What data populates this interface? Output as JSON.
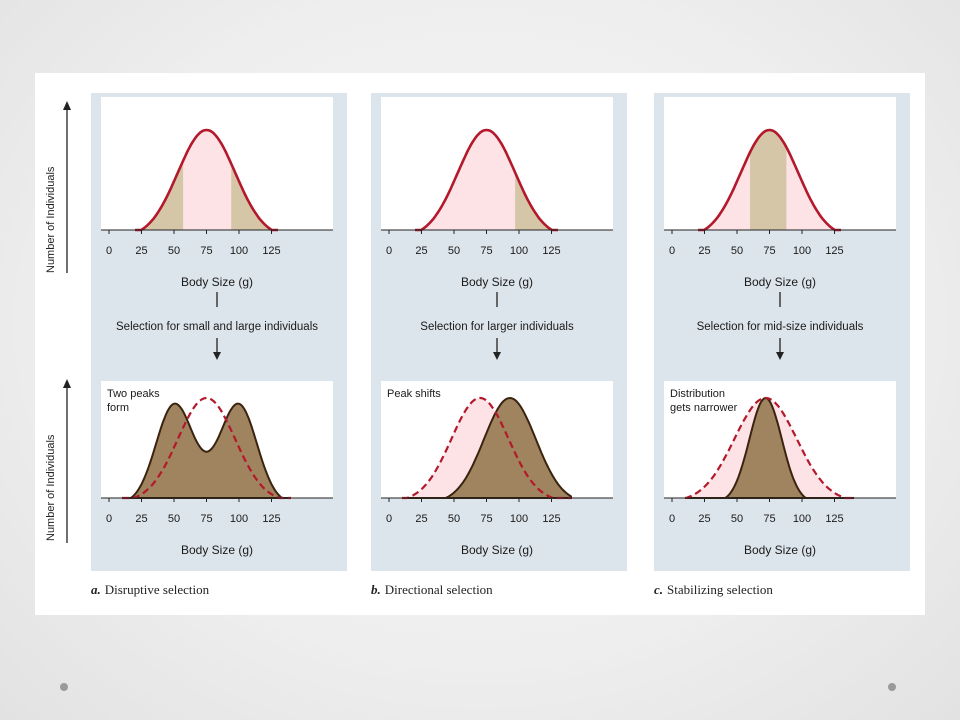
{
  "figure": {
    "y_axis_label": "Number of Individuals",
    "x_axis_label": "Body Size (g)",
    "x_ticks": [
      "0",
      "25",
      "50",
      "75",
      "100",
      "125"
    ],
    "colors": {
      "panel_bg": "#dde5ec",
      "curve_red": "#b3182b",
      "pink_fill": "#fde3e6",
      "tan_fill": "#d6c6a8",
      "brown_fill": "#a08460",
      "brown_stroke": "#3a2410"
    },
    "panels": [
      {
        "letter": "a.",
        "caption": "Disruptive selection",
        "selection_text": "Selection for small and large individuals",
        "note_lines": [
          "Two peaks",
          "form"
        ]
      },
      {
        "letter": "b.",
        "caption": "Directional selection",
        "selection_text": "Selection for larger individuals",
        "note_lines": [
          "Peak shifts"
        ]
      },
      {
        "letter": "c.",
        "caption": "Stabilizing selection",
        "selection_text": "Selection for mid-size individuals",
        "note_lines": [
          "Distribution",
          "gets narrower"
        ]
      }
    ]
  },
  "chart_data": [
    {
      "type": "area",
      "panel": "a",
      "stage": "before",
      "x": [
        0,
        25,
        50,
        75,
        100,
        125
      ],
      "series": [
        {
          "values": [
            0,
            0.1,
            0.55,
            1,
            0.55,
            0.1
          ]
        }
      ],
      "highlight_ranges": [
        [
          0,
          57
        ],
        [
          94,
          125
        ]
      ]
    },
    {
      "type": "area",
      "panel": "a",
      "stage": "after",
      "x": [
        0,
        25,
        50,
        75,
        100,
        125
      ],
      "series": [
        {
          "values": [
            0,
            0.12,
            0.95,
            0.5,
            0.95,
            0.12
          ]
        },
        {
          "values": [
            0,
            0.05,
            0.55,
            1,
            0.55,
            0.05
          ]
        }
      ]
    },
    {
      "type": "area",
      "panel": "b",
      "stage": "before",
      "x": [
        0,
        25,
        50,
        75,
        100,
        125
      ],
      "series": [
        {
          "values": [
            0,
            0.1,
            0.55,
            1,
            0.55,
            0.1
          ]
        }
      ],
      "highlight_ranges": [
        [
          97,
          125
        ]
      ]
    },
    {
      "type": "area",
      "panel": "b",
      "stage": "after",
      "x": [
        0,
        25,
        50,
        75,
        100,
        125
      ],
      "peak_before": 70,
      "peak_after": 93
    },
    {
      "type": "area",
      "panel": "c",
      "stage": "before",
      "x": [
        0,
        25,
        50,
        75,
        100,
        125
      ],
      "series": [
        {
          "values": [
            0,
            0.1,
            0.55,
            1,
            0.55,
            0.1
          ]
        }
      ],
      "highlight_ranges": [
        [
          60,
          88
        ]
      ]
    },
    {
      "type": "area",
      "panel": "c",
      "stage": "after",
      "x": [
        0,
        25,
        50,
        75,
        100,
        125
      ],
      "peak_before": 72,
      "peak_after": 72
    }
  ]
}
